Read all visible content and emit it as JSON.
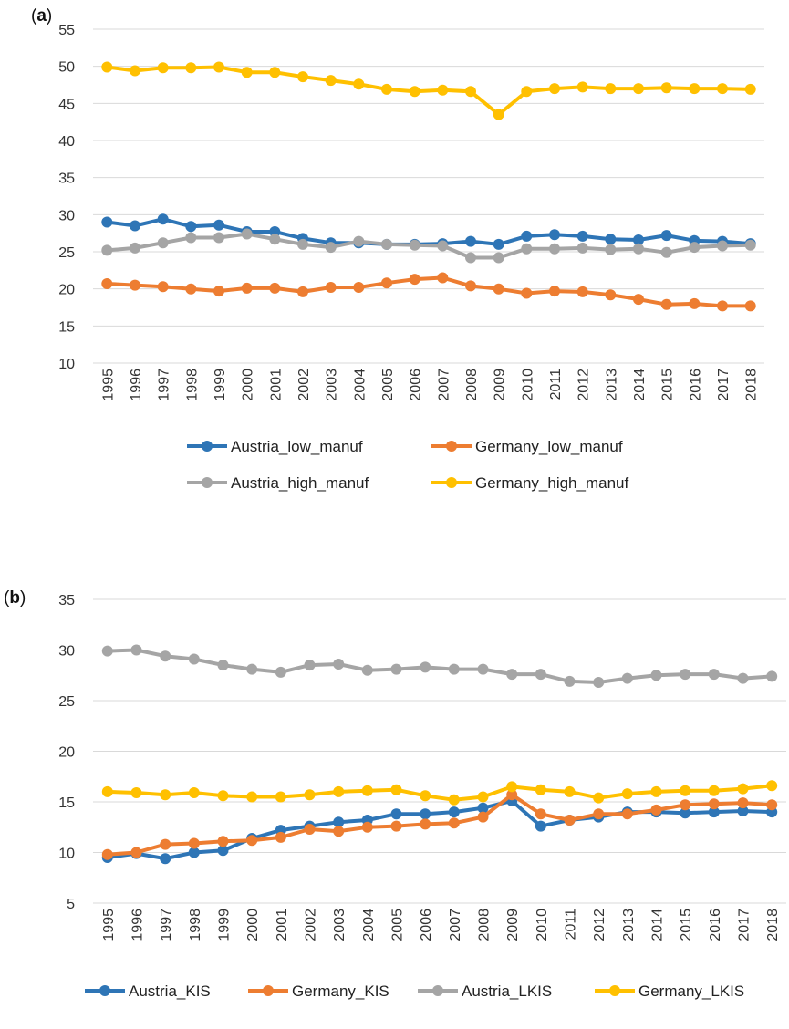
{
  "colors": {
    "blue": "#2e75b6",
    "orange": "#ed7d31",
    "gray": "#a5a5a5",
    "yellow": "#ffc000",
    "grid": "#d9d9d9"
  },
  "chart_data": [
    {
      "panel": "a",
      "label_open": "(",
      "label_letter": "a",
      "label_close": ")",
      "type": "line",
      "categories": [
        "1995",
        "1996",
        "1997",
        "1998",
        "1999",
        "2000",
        "2001",
        "2002",
        "2003",
        "2004",
        "2005",
        "2006",
        "2007",
        "2008",
        "2009",
        "2010",
        "2011",
        "2012",
        "2013",
        "2014",
        "2015",
        "2016",
        "2017",
        "2018"
      ],
      "ylim": [
        10,
        55
      ],
      "yticks": [
        "10",
        "15",
        "20",
        "25",
        "30",
        "35",
        "40",
        "45",
        "50",
        "55"
      ],
      "grid": true,
      "legend_position": "bottom",
      "series": [
        {
          "name": "Austria_low_manuf",
          "color": "#2e75b6",
          "values": [
            29.0,
            28.5,
            29.4,
            28.4,
            28.6,
            27.7,
            27.7,
            26.8,
            26.2,
            26.2,
            26.0,
            26.0,
            26.1,
            26.4,
            26.0,
            27.1,
            27.3,
            27.1,
            26.7,
            26.6,
            27.2,
            26.5,
            26.4,
            26.1
          ]
        },
        {
          "name": "Germany_low_manuf",
          "color": "#ed7d31",
          "values": [
            20.7,
            20.5,
            20.3,
            20.0,
            19.7,
            20.1,
            20.1,
            19.6,
            20.2,
            20.2,
            20.8,
            21.3,
            21.5,
            20.4,
            20.0,
            19.4,
            19.7,
            19.6,
            19.2,
            18.6,
            17.9,
            18.0,
            17.7,
            17.7
          ]
        },
        {
          "name": "Austria_high_manuf",
          "color": "#a5a5a5",
          "values": [
            25.2,
            25.5,
            26.2,
            26.9,
            26.9,
            27.4,
            26.7,
            26.0,
            25.6,
            26.4,
            26.0,
            25.9,
            25.8,
            24.2,
            24.2,
            25.4,
            25.4,
            25.5,
            25.3,
            25.4,
            24.9,
            25.6,
            25.8,
            25.9
          ]
        },
        {
          "name": "Germany_high_manuf",
          "color": "#ffc000",
          "values": [
            49.9,
            49.4,
            49.8,
            49.8,
            49.9,
            49.2,
            49.2,
            48.6,
            48.1,
            47.6,
            46.9,
            46.6,
            46.8,
            46.6,
            43.5,
            46.6,
            47.0,
            47.2,
            47.0,
            47.0,
            47.1,
            47.0,
            47.0,
            46.9
          ]
        }
      ]
    },
    {
      "panel": "b",
      "label_open": "(",
      "label_letter": "b",
      "label_close": ")",
      "type": "line",
      "categories": [
        "1995",
        "1996",
        "1997",
        "1998",
        "1999",
        "2000",
        "2001",
        "2002",
        "2003",
        "2004",
        "2005",
        "2006",
        "2007",
        "2008",
        "2009",
        "2010",
        "2011",
        "2012",
        "2013",
        "2014",
        "2015",
        "2016",
        "2017",
        "2018"
      ],
      "ylim": [
        5,
        35
      ],
      "yticks": [
        "5",
        "10",
        "15",
        "20",
        "25",
        "30",
        "35"
      ],
      "grid": true,
      "legend_position": "bottom",
      "series": [
        {
          "name": "Austria_KIS",
          "color": "#2e75b6",
          "values": [
            9.5,
            9.9,
            9.4,
            10.0,
            10.2,
            11.4,
            12.2,
            12.6,
            13.0,
            13.2,
            13.8,
            13.8,
            14.0,
            14.4,
            15.1,
            12.6,
            13.2,
            13.5,
            14.0,
            14.0,
            13.9,
            14.0,
            14.1,
            14.0
          ]
        },
        {
          "name": "Germany_KIS",
          "color": "#ed7d31",
          "values": [
            9.8,
            10.0,
            10.8,
            10.9,
            11.1,
            11.2,
            11.5,
            12.3,
            12.1,
            12.5,
            12.6,
            12.8,
            12.9,
            13.5,
            15.7,
            13.8,
            13.2,
            13.8,
            13.8,
            14.2,
            14.7,
            14.8,
            14.9,
            14.7
          ]
        },
        {
          "name": "Austria_LKIS",
          "color": "#a5a5a5",
          "values": [
            29.9,
            30.0,
            29.4,
            29.1,
            28.5,
            28.1,
            27.8,
            28.5,
            28.6,
            28.0,
            28.1,
            28.3,
            28.1,
            28.1,
            27.6,
            27.6,
            26.9,
            26.8,
            27.2,
            27.5,
            27.6,
            27.6,
            27.2,
            27.4
          ]
        },
        {
          "name": "Germany_LKIS",
          "color": "#ffc000",
          "values": [
            16.0,
            15.9,
            15.7,
            15.9,
            15.6,
            15.5,
            15.5,
            15.7,
            16.0,
            16.1,
            16.2,
            15.6,
            15.2,
            15.5,
            16.5,
            16.2,
            16.0,
            15.4,
            15.8,
            16.0,
            16.1,
            16.1,
            16.3,
            16.6
          ]
        }
      ]
    }
  ]
}
